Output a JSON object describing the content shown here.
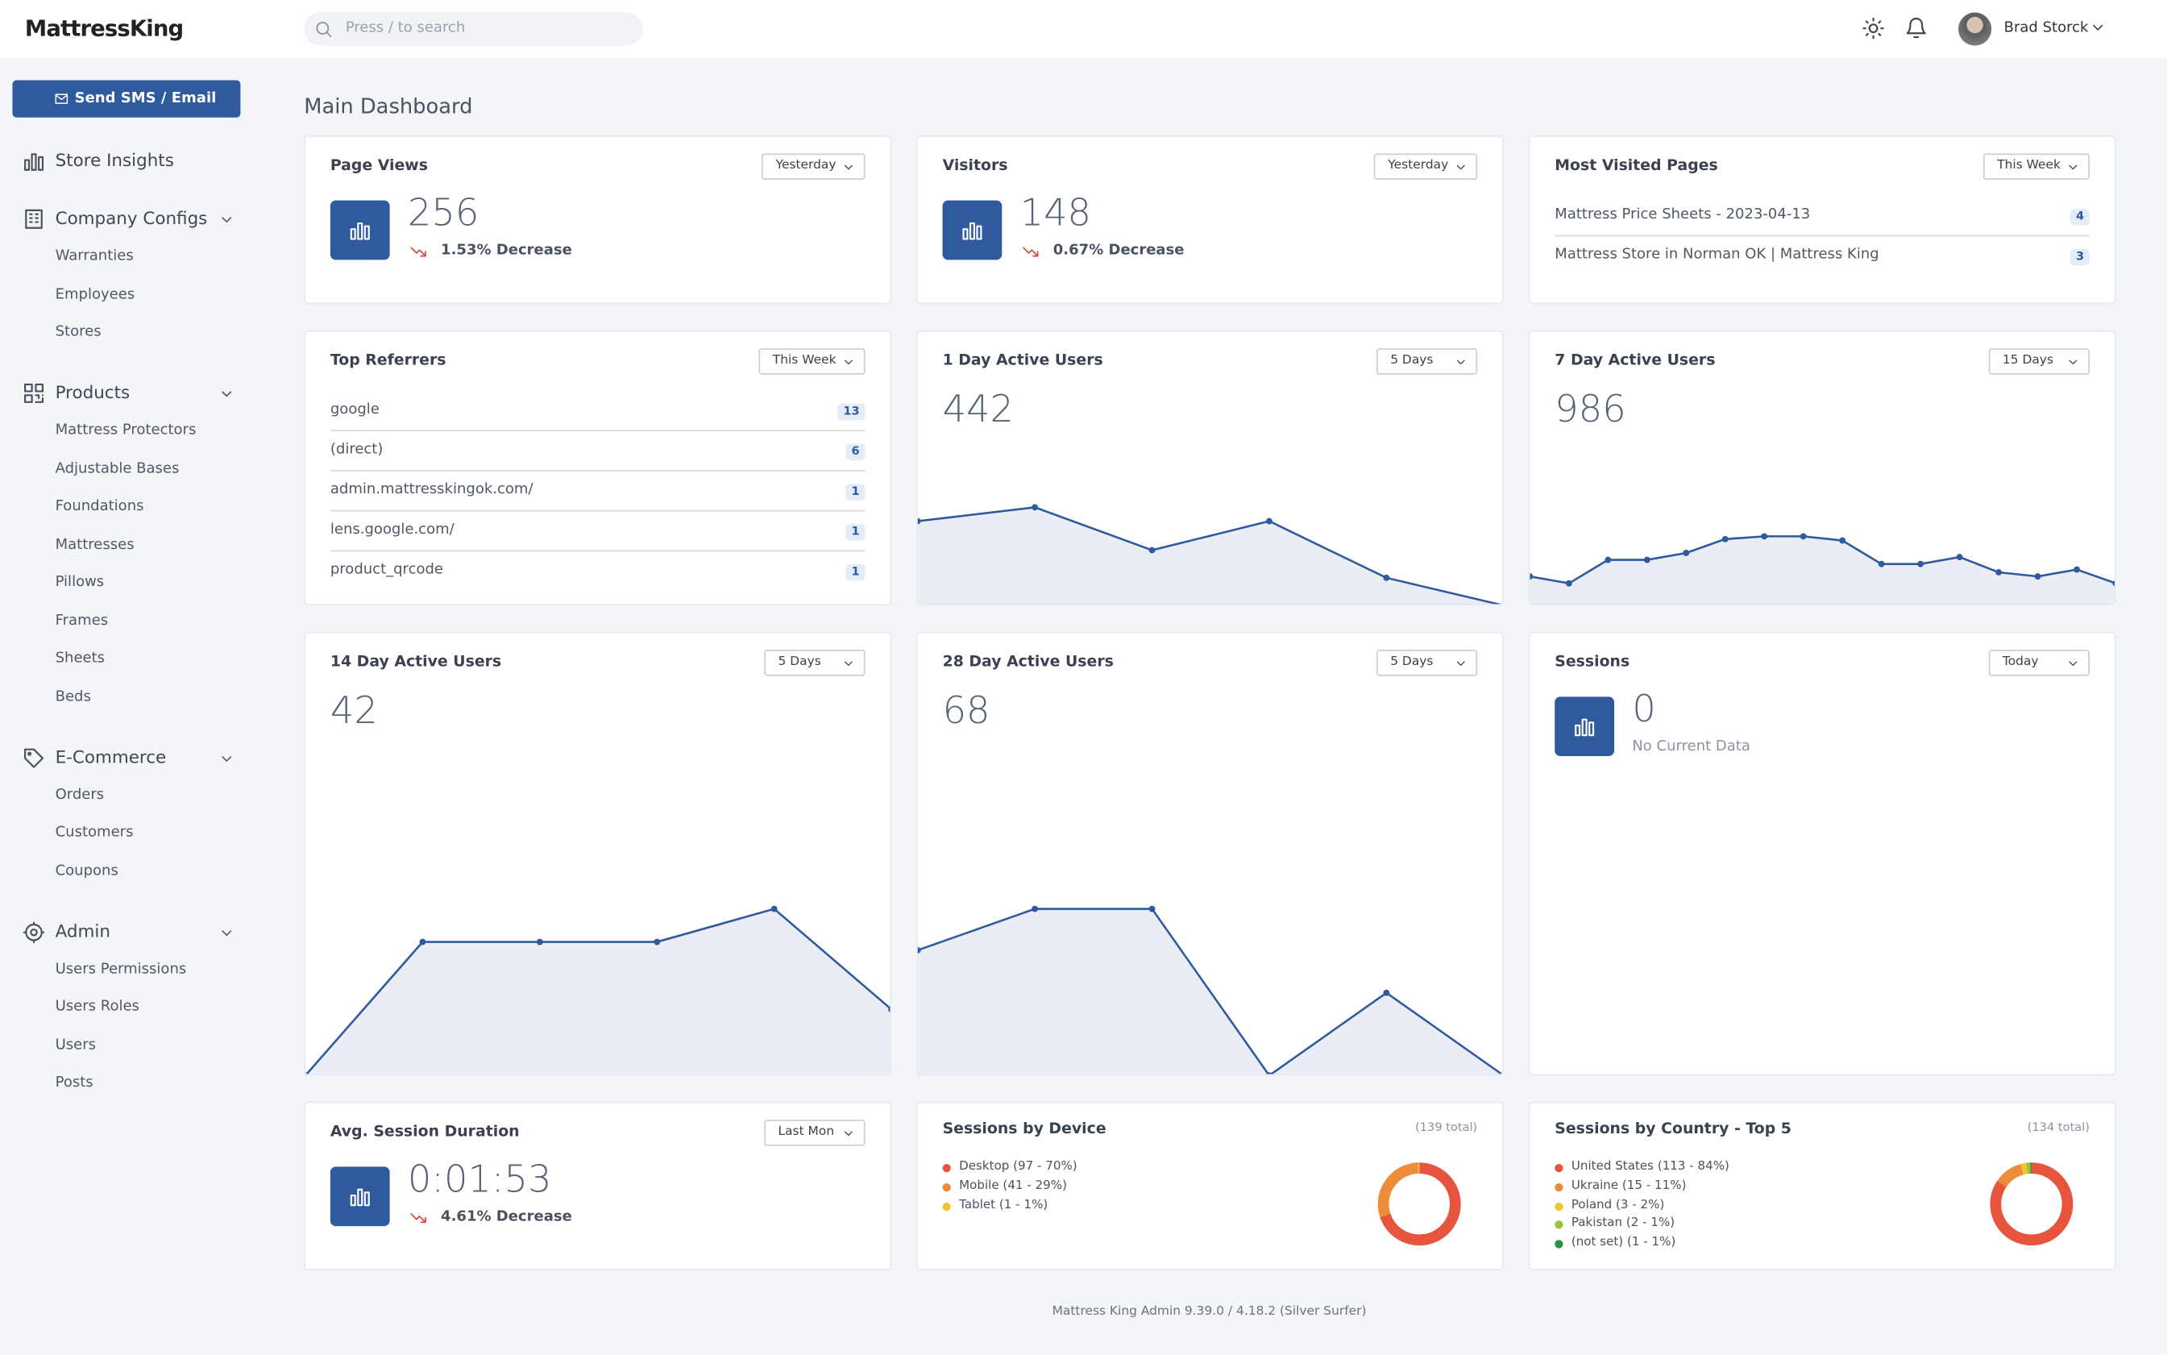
{
  "header": {
    "brand": "MattressKing",
    "search_placeholder": "Press / to search",
    "user": "Brad Storck"
  },
  "sidebar": {
    "button": "Send SMS / Email",
    "sections": [
      {
        "label": "Store Insights",
        "icon": "chart",
        "items": []
      },
      {
        "label": "Company Configs",
        "icon": "building",
        "items": [
          "Warranties",
          "Employees",
          "Stores"
        ]
      },
      {
        "label": "Products",
        "icon": "qr",
        "items": [
          "Mattress Protectors",
          "Adjustable Bases",
          "Foundations",
          "Mattresses",
          "Pillows",
          "Frames",
          "Sheets",
          "Beds"
        ]
      },
      {
        "label": "E-Commerce",
        "icon": "tag",
        "items": [
          "Orders",
          "Customers",
          "Coupons"
        ]
      },
      {
        "label": "Admin",
        "icon": "gear",
        "items": [
          "Users Permissions",
          "Users Roles",
          "Users",
          "Posts"
        ]
      }
    ]
  },
  "page_title": "Main Dashboard",
  "cards": [
    {
      "title": "Page Views",
      "filter": "Yesterday",
      "kind": "stat",
      "value": 256,
      "change": "1.53% Decrease",
      "trend": "down"
    },
    {
      "title": "Visitors",
      "filter": "Yesterday",
      "kind": "stat",
      "value": 148,
      "change": "0.67% Decrease",
      "trend": "down"
    },
    {
      "title": "Most Visited Pages",
      "filter": "This Week",
      "kind": "list",
      "items": [
        {
          "label": "Mattress Price Sheets - 2023-04-13",
          "count": 4
        },
        {
          "label": "Mattress Store in Norman OK | Mattress King",
          "count": 3
        }
      ]
    },
    {
      "title": "Top Referrers",
      "filter": "This Week",
      "kind": "list",
      "items": [
        {
          "label": "google",
          "count": 13
        },
        {
          "label": "(direct)",
          "count": 6
        },
        {
          "label": "admin.mattresskingok.com/",
          "count": 1
        },
        {
          "label": "lens.google.com/",
          "count": 1
        },
        {
          "label": "product_qrcode",
          "count": 1
        }
      ]
    },
    {
      "title": "1 Day Active Users",
      "filter": "5 Days",
      "kind": "line",
      "value": 442,
      "chart": {
        "type": "line",
        "values": [
          61,
          71,
          40,
          61,
          20,
          0
        ],
        "ylim": [
          0,
          130
        ]
      }
    },
    {
      "title": "7 Day Active Users",
      "filter": "15 Days",
      "kind": "line",
      "value": 986,
      "chart": {
        "type": "line",
        "values": [
          21,
          16,
          33,
          33,
          38,
          48,
          50,
          50,
          47,
          30,
          30,
          35,
          24,
          21,
          26,
          16
        ],
        "ylim": [
          0,
          130
        ]
      }
    },
    {
      "title": "14 Day Active Users",
      "filter": "5 Days",
      "kind": "line",
      "value": 42,
      "chart": {
        "type": "line",
        "values": [
          0,
          97,
          97,
          97,
          121,
          48
        ],
        "ylim": [
          0,
          250
        ]
      }
    },
    {
      "title": "28 Day Active Users",
      "filter": "5 Days",
      "kind": "line",
      "value": 68,
      "chart": {
        "type": "line",
        "values": [
          91,
          121,
          121,
          0,
          60,
          0
        ],
        "ylim": [
          0,
          250
        ]
      }
    },
    {
      "title": "Sessions",
      "filter": "Today",
      "kind": "stat",
      "value": 0,
      "change": "No Current Data",
      "trend": "none"
    },
    {
      "title": "Avg. Session Duration",
      "filter": "Last Mon",
      "kind": "stat",
      "value": "0:01:53",
      "change": "4.61% Decrease",
      "trend": "down"
    },
    {
      "title": "Sessions by Device",
      "total": "(139 total)",
      "kind": "donut",
      "chart": {
        "type": "pie",
        "series": [
          {
            "name": "Desktop (97 - 70%)",
            "value": 97,
            "color": "#e8553e"
          },
          {
            "name": "Mobile (41 - 29%)",
            "value": 41,
            "color": "#ee8c3a"
          },
          {
            "name": "Tablet (1 - 1%)",
            "value": 1,
            "color": "#f2c530"
          }
        ]
      }
    },
    {
      "title": "Sessions by Country - Top 5",
      "total": "(134 total)",
      "kind": "donut",
      "chart": {
        "type": "pie",
        "series": [
          {
            "name": "United States (113 - 84%)",
            "value": 113,
            "color": "#e8553e"
          },
          {
            "name": "Ukraine (15 - 11%)",
            "value": 15,
            "color": "#ee8c3a"
          },
          {
            "name": "Poland (3 - 2%)",
            "value": 3,
            "color": "#f2c530"
          },
          {
            "name": "Pakistan (2 - 1%)",
            "value": 2,
            "color": "#9ac23c"
          },
          {
            "name": "(not set) (1 - 1%)",
            "value": 1,
            "color": "#2f8f45"
          }
        ]
      }
    }
  ],
  "footer": "Mattress King Admin 9.39.0 / 4.18.2 (Silver Surfer)"
}
